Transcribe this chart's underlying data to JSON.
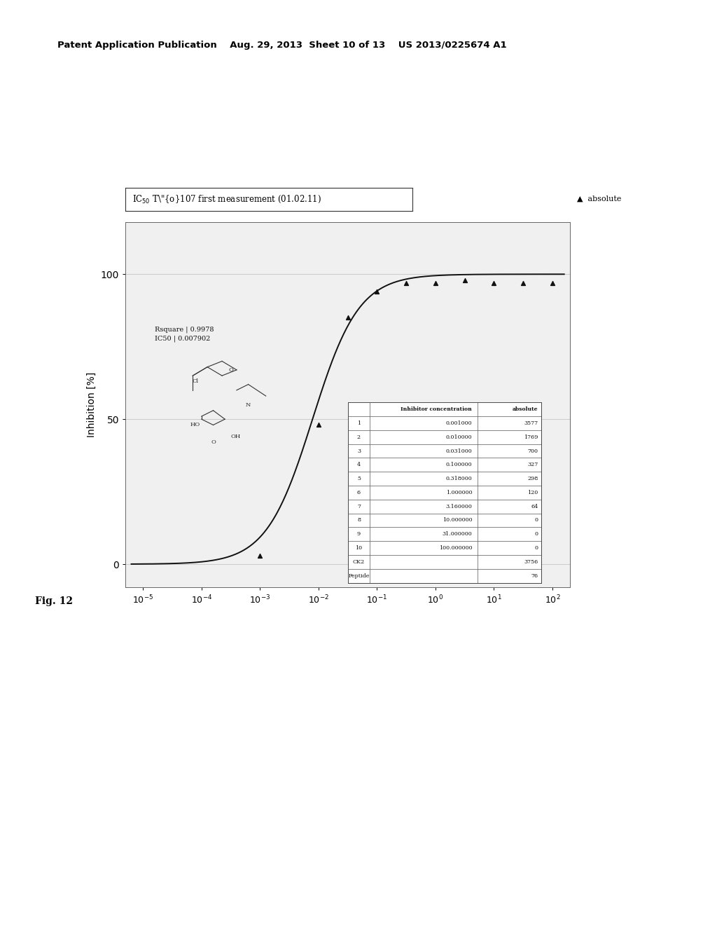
{
  "page_header": "Patent Application Publication    Aug. 29, 2013  Sheet 10 of 13    US 2013/0225674 A1",
  "fig_label": "Fig. 12",
  "ylabel": "Inhibition [%]",
  "yticks": [
    0,
    50,
    100
  ],
  "xtick_positions": [
    -5,
    -4,
    -3,
    -2,
    -1,
    0,
    1,
    2
  ],
  "legend_label": "▲  absolute",
  "rsquare_line1": "Rsquare | 0.9978",
  "rsquare_line2": "IC50 | 0.007902",
  "data_points_x_log": [
    -3.0,
    -2.0,
    -1.5,
    -1.0,
    -0.5,
    0.0,
    0.5,
    1.0,
    1.5,
    2.0
  ],
  "data_points_y": [
    3,
    48,
    85,
    94,
    97,
    97,
    98,
    97,
    97,
    97
  ],
  "ic50": 0.007902,
  "n_hill": 1.1,
  "table_data": [
    [
      "",
      "Inhibitor concentration",
      "absolute"
    ],
    [
      "1",
      "0.001000",
      "3577"
    ],
    [
      "2",
      "0.010000",
      "1769"
    ],
    [
      "3",
      "0.031000",
      "700"
    ],
    [
      "4",
      "0.100000",
      "327"
    ],
    [
      "5",
      "0.318000",
      "298"
    ],
    [
      "6",
      "1.000000",
      "120"
    ],
    [
      "7",
      "3.160000",
      "64"
    ],
    [
      "8",
      "10.000000",
      "0"
    ],
    [
      "9",
      "31.000000",
      "0"
    ],
    [
      "10",
      "100.000000",
      "0"
    ],
    [
      "CK2",
      "",
      "3756"
    ],
    [
      "Peptide",
      "",
      "76"
    ]
  ],
  "background_color": "#ffffff",
  "plot_bg_color": "#f0f0f0",
  "line_color": "#111111",
  "marker_color": "#111111"
}
